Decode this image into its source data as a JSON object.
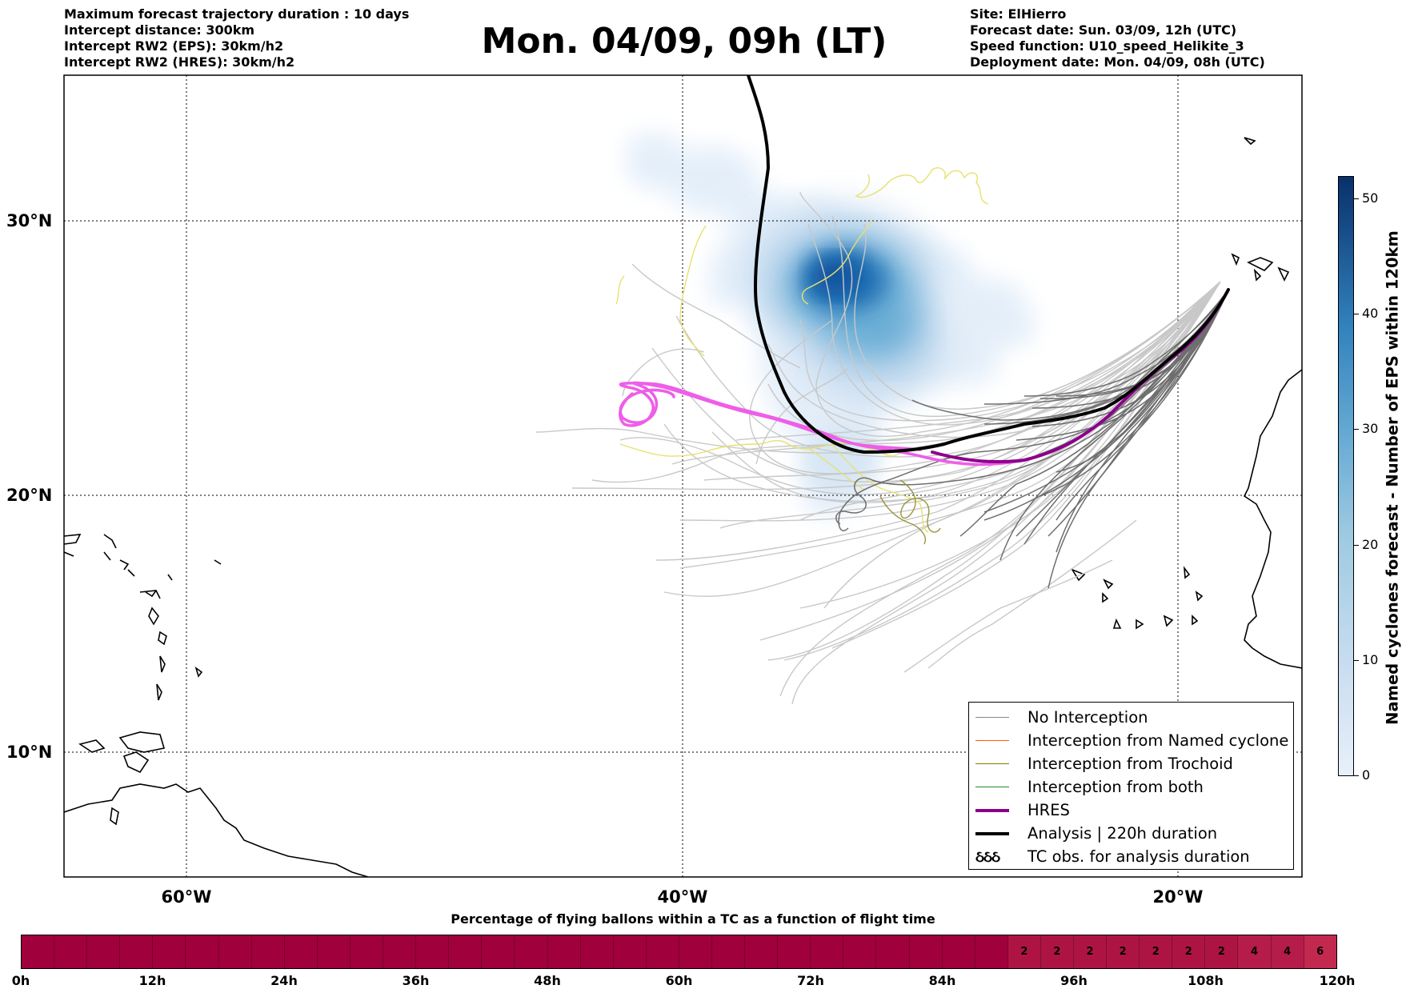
{
  "header": {
    "left_lines": [
      "Maximum forecast trajectory duration : 10 days",
      "Intercept distance: 300km",
      "Intercept RW2 (EPS):  30km/h2",
      "Intercept RW2 (HRES): 30km/h2"
    ],
    "title": "Mon. 04/09, 09h (LT)",
    "right_lines": [
      "Site: ElHierro",
      "Forecast date: Sun. 03/09, 12h (UTC)",
      "Speed function: U10_speed_Helikite_3",
      "Deployment date: Mon. 04/09, 08h (UTC)"
    ]
  },
  "map": {
    "lat_labels": [
      "30°N",
      "20°N",
      "10°N"
    ],
    "lon_labels": [
      "60°W",
      "40°W",
      "20°W"
    ],
    "colors": {
      "no_interception": "#888888",
      "named_cyclone": "#ff5a14",
      "trochoid": "#808000",
      "both": "#228b22",
      "hres": "#8b008b",
      "analysis": "#000000"
    }
  },
  "legend": {
    "items": [
      {
        "label": "No Interception",
        "type": "line",
        "color": "#888888"
      },
      {
        "label": "Interception from Named cyclone",
        "type": "line",
        "color": "#ff5a14"
      },
      {
        "label": "Interception from Trochoid",
        "type": "line",
        "color": "#808000"
      },
      {
        "label": "Interception from both",
        "type": "line",
        "color": "#228b22"
      },
      {
        "label": "HRES",
        "type": "thick",
        "color": "#8b008b"
      },
      {
        "label": "Analysis | 220h duration",
        "type": "thick",
        "color": "#000000"
      },
      {
        "label": "TC obs. for analysis duration",
        "type": "glyph",
        "glyph": "ઠઠઠ"
      }
    ]
  },
  "colorbar": {
    "title": "Named cyclones forecast - Number of EPS within 120km",
    "ticks": [
      "50",
      "40",
      "30",
      "20",
      "10",
      "0"
    ],
    "max": 52
  },
  "timebar": {
    "title": "Percentage of flying ballons within a TC as a function of flight time",
    "labels": [
      "0h",
      "12h",
      "24h",
      "36h",
      "48h",
      "60h",
      "72h",
      "84h",
      "96h",
      "108h",
      "120h"
    ],
    "values": [
      0,
      0,
      0,
      0,
      0,
      0,
      0,
      0,
      0,
      0,
      0,
      0,
      0,
      0,
      0,
      0,
      0,
      0,
      0,
      0,
      0,
      0,
      0,
      0,
      0,
      0,
      0,
      0,
      0,
      0,
      2,
      2,
      2,
      2,
      2,
      2,
      2,
      4,
      4,
      6
    ]
  }
}
